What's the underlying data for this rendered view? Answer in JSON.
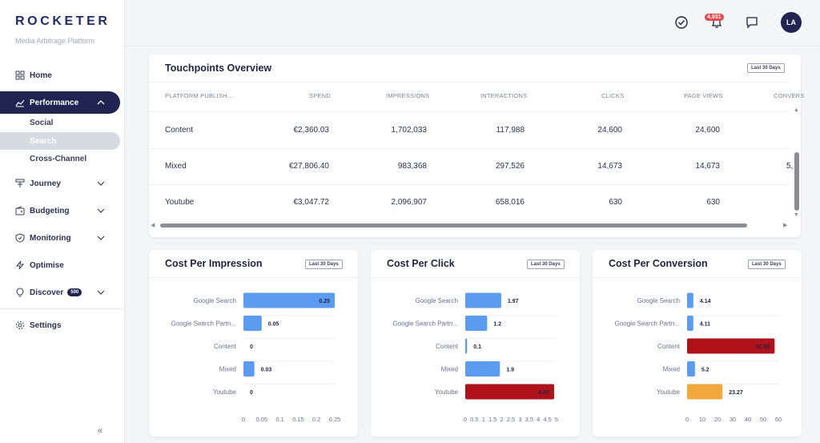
{
  "brand": {
    "logo": "ROCKETER",
    "tagline": "Media Arbitrage Platform"
  },
  "sidebar": {
    "items": [
      {
        "label": "Home",
        "icon": "grid-icon"
      },
      {
        "label": "Performance",
        "icon": "chart-line-icon"
      },
      {
        "label": "Journey",
        "icon": "journey-icon"
      },
      {
        "label": "Budgeting",
        "icon": "wallet-icon"
      },
      {
        "label": "Monitoring",
        "icon": "shield-icon"
      },
      {
        "label": "Optimise",
        "icon": "bolt-icon"
      },
      {
        "label": "Discover",
        "icon": "bulb-icon",
        "badge": "500"
      },
      {
        "label": "Settings",
        "icon": "gear-icon"
      }
    ],
    "sub_items": [
      {
        "label": "Social"
      },
      {
        "label": "Search"
      },
      {
        "label": "Cross-Channel"
      }
    ],
    "collapse_label": "«"
  },
  "topbar": {
    "notifications_count": "4,931",
    "avatar_initials": "LA"
  },
  "touchpoints": {
    "title": "Touchpoints Overview",
    "range": "Last 30 Days",
    "columns": [
      "PLATFORM PUBLISH...",
      "SPEND",
      "IMPRESSIONS",
      "INTERACTIONS",
      "CLICKS",
      "PAGE VIEWS",
      "CONVERS"
    ],
    "rows": [
      [
        "Content",
        "€2,360.03",
        "1,702,033",
        "117,988",
        "24,600",
        "24,600",
        ""
      ],
      [
        "Mixed",
        "€27,806.40",
        "983,368",
        "297,526",
        "14,673",
        "14,673",
        "5,"
      ],
      [
        "Youtube",
        "€3,047.72",
        "2,096,907",
        "658,016",
        "630",
        "630",
        ""
      ]
    ]
  },
  "chart_data": [
    {
      "type": "bar",
      "title": "Cost Per Impression",
      "range": "Last 30 Days",
      "categories": [
        "Google Search",
        "Google Search Partn...",
        "Content",
        "Mixed",
        "Youtube"
      ],
      "values": [
        0.25,
        0.05,
        0,
        0.03,
        0
      ],
      "value_labels": [
        "0.25",
        "0.05",
        "0",
        "0.03",
        "0"
      ],
      "xlim": [
        0,
        0.25
      ],
      "ticks": [
        "0",
        "0.05",
        "0.1",
        "0.15",
        "0.2",
        "0.25"
      ],
      "colors": [
        "#5b9bf0",
        "#5b9bf0",
        "#5b9bf0",
        "#5b9bf0",
        "#5b9bf0"
      ],
      "label_inside": [
        true,
        false,
        false,
        false,
        false
      ]
    },
    {
      "type": "bar",
      "title": "Cost Per Click",
      "range": "Last 30 Days",
      "categories": [
        "Google Search",
        "Google Search Partn...",
        "Content",
        "Mixed",
        "Youtube"
      ],
      "values": [
        1.97,
        1.2,
        0.1,
        1.9,
        4.87
      ],
      "value_labels": [
        "1.97",
        "1.2",
        "0.1",
        "1.9",
        "4.87"
      ],
      "xlim": [
        0,
        5
      ],
      "ticks": [
        "0",
        "0.5",
        "1",
        "1.5",
        "2",
        "2.5",
        "3",
        "3.5",
        "4",
        "4.5",
        "5"
      ],
      "colors": [
        "#5b9bf0",
        "#5b9bf0",
        "#5b9bf0",
        "#5b9bf0",
        "#b0121b"
      ],
      "label_inside": [
        false,
        false,
        false,
        false,
        true
      ]
    },
    {
      "type": "bar",
      "title": "Cost Per Conversion",
      "range": "Last 30 Days",
      "categories": [
        "Google Search",
        "Google Search Partn...",
        "Content",
        "Mixed",
        "Youtube"
      ],
      "values": [
        4.14,
        4.11,
        57.55,
        5.2,
        23.27
      ],
      "value_labels": [
        "4.14",
        "4.11",
        "57.55",
        "5.2",
        "23.27"
      ],
      "xlim": [
        0,
        60
      ],
      "ticks": [
        "0",
        "10",
        "20",
        "30",
        "40",
        "50",
        "60"
      ],
      "colors": [
        "#5b9bf0",
        "#5b9bf0",
        "#b0121b",
        "#5b9bf0",
        "#f2a93b"
      ],
      "label_inside": [
        false,
        false,
        true,
        false,
        false
      ]
    }
  ]
}
